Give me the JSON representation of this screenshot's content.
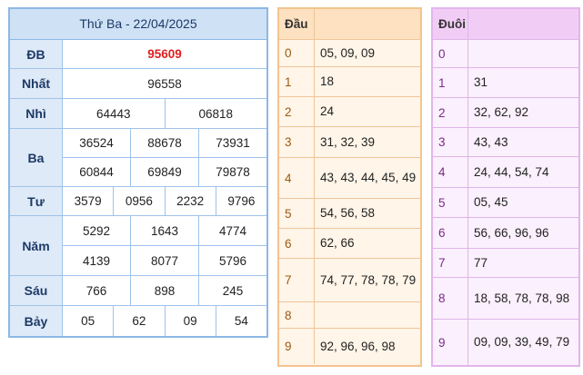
{
  "results": {
    "title": "Thứ Ba - 22/04/2025",
    "prizes": [
      {
        "label": "ĐB",
        "lines": [
          [
            "95609"
          ]
        ],
        "special": true
      },
      {
        "label": "Nhất",
        "lines": [
          [
            "96558"
          ]
        ]
      },
      {
        "label": "Nhì",
        "lines": [
          [
            "64443",
            "06818"
          ]
        ]
      },
      {
        "label": "Ba",
        "lines": [
          [
            "36524",
            "88678",
            "73931"
          ],
          [
            "60844",
            "69849",
            "79878"
          ]
        ]
      },
      {
        "label": "Tư",
        "lines": [
          [
            "3579",
            "0956",
            "2232",
            "9796"
          ]
        ]
      },
      {
        "label": "Năm",
        "lines": [
          [
            "5292",
            "1643",
            "4774"
          ],
          [
            "4139",
            "8077",
            "5796"
          ]
        ]
      },
      {
        "label": "Sáu",
        "lines": [
          [
            "766",
            "898",
            "245"
          ]
        ]
      },
      {
        "label": "Bảy",
        "lines": [
          [
            "05",
            "62",
            "09",
            "54"
          ]
        ]
      }
    ]
  },
  "dau": {
    "header": "Đầu",
    "rows": [
      {
        "digit": "0",
        "values": "05, 09, 09"
      },
      {
        "digit": "1",
        "values": "18"
      },
      {
        "digit": "2",
        "values": "24"
      },
      {
        "digit": "3",
        "values": "31, 32, 39"
      },
      {
        "digit": "4",
        "values": "43, 43, 44, 45, 49"
      },
      {
        "digit": "5",
        "values": "54, 56, 58"
      },
      {
        "digit": "6",
        "values": "62, 66"
      },
      {
        "digit": "7",
        "values": "74, 77, 78, 78, 79"
      },
      {
        "digit": "8",
        "values": ""
      },
      {
        "digit": "9",
        "values": "92, 96, 96, 98"
      }
    ]
  },
  "duoi": {
    "header": "Đuôi",
    "rows": [
      {
        "digit": "0",
        "values": ""
      },
      {
        "digit": "1",
        "values": "31"
      },
      {
        "digit": "2",
        "values": "32, 62, 92"
      },
      {
        "digit": "3",
        "values": "43, 43"
      },
      {
        "digit": "4",
        "values": "24, 44, 54, 74"
      },
      {
        "digit": "5",
        "values": "05, 45"
      },
      {
        "digit": "6",
        "values": "56, 66, 96, 96"
      },
      {
        "digit": "7",
        "values": "77"
      },
      {
        "digit": "8",
        "values": "18, 58, 78, 78, 98"
      },
      {
        "digit": "9",
        "values": "09, 09, 39, 49, 79"
      }
    ]
  }
}
